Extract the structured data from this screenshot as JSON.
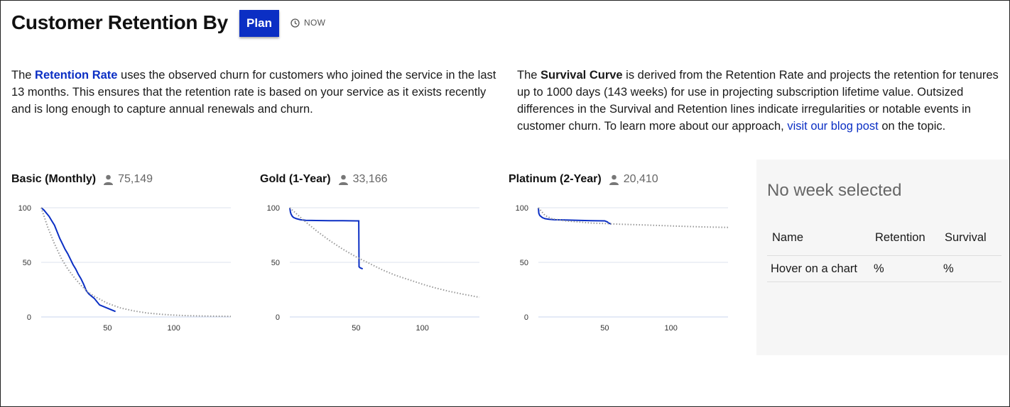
{
  "header": {
    "title": "Customer Retention By",
    "plan_button": "Plan",
    "now_label": "NOW"
  },
  "intro_left": {
    "prefix": "The ",
    "highlight": "Retention Rate",
    "body": " uses the observed churn for customers who joined the service in the last 13 months. This ensures that the retention rate is based on your service as it exists recently and is long enough to capture annual renewals and churn."
  },
  "intro_right": {
    "prefix": "The ",
    "bold": "Survival Curve",
    "body": " is derived from the Retention Rate and projects the retention for tenures up to 1000 days (143 weeks) for use in projecting subscription lifetime value. Outsized differences in the Survival and Retention lines indicate irregularities or notable events in customer churn. To learn more about our approach, ",
    "link": "visit our blog post",
    "suffix": " on the topic."
  },
  "colors": {
    "accent": "#0b2fc4",
    "survival": "#999999",
    "grid": "#dde3ec"
  },
  "charts": [
    {
      "name": "Basic (Monthly)",
      "count": "75,149"
    },
    {
      "name": "Gold (1-Year)",
      "count": "33,166"
    },
    {
      "name": "Platinum (2-Year)",
      "count": "20,410"
    }
  ],
  "chart_data": [
    {
      "type": "line",
      "title": "Basic (Monthly)",
      "xlim": [
        0,
        143
      ],
      "ylim": [
        0,
        100
      ],
      "x_ticks": [
        50,
        100
      ],
      "y_ticks": [
        0,
        50,
        100
      ],
      "series": [
        {
          "style": "solid",
          "x": [
            0,
            2,
            4,
            6,
            8,
            10,
            12,
            14,
            16,
            18,
            20,
            22,
            24,
            26,
            28,
            30,
            32,
            34,
            36,
            40,
            44,
            50,
            56
          ],
          "y": [
            100,
            98,
            95,
            92,
            88,
            84,
            78,
            72,
            67,
            62,
            58,
            53,
            48,
            44,
            39,
            35,
            30,
            24,
            21,
            17,
            11,
            8,
            5
          ]
        },
        {
          "style": "dotted",
          "x": [
            0,
            5,
            10,
            15,
            20,
            25,
            30,
            35,
            40,
            50,
            60,
            70,
            80,
            90,
            100,
            110,
            120,
            130,
            143
          ],
          "y": [
            100,
            82,
            67,
            54,
            44,
            36,
            29,
            23,
            19,
            12.5,
            8.2,
            5.5,
            3.6,
            2.5,
            1.7,
            1.2,
            0.9,
            0.7,
            0.5
          ]
        }
      ]
    },
    {
      "type": "line",
      "title": "Gold (1-Year)",
      "xlim": [
        0,
        143
      ],
      "ylim": [
        0,
        100
      ],
      "x_ticks": [
        50,
        100
      ],
      "y_ticks": [
        0,
        50,
        100
      ],
      "series": [
        {
          "style": "solid",
          "x": [
            0,
            0.5,
            1,
            2,
            3,
            5,
            8,
            12,
            20,
            30,
            40,
            50,
            52,
            52.2,
            53,
            55
          ],
          "y": [
            100,
            96,
            94,
            92,
            91,
            90,
            89,
            88.5,
            88.3,
            88.2,
            88.1,
            88,
            88,
            46,
            45,
            44
          ]
        },
        {
          "style": "dotted",
          "x": [
            0,
            10,
            20,
            30,
            40,
            50,
            60,
            70,
            80,
            90,
            100,
            110,
            120,
            130,
            143
          ],
          "y": [
            100,
            89,
            79,
            70,
            62,
            55,
            49,
            43,
            38,
            34,
            30,
            26.5,
            23.5,
            21,
            18
          ]
        }
      ]
    },
    {
      "type": "line",
      "title": "Platinum (2-Year)",
      "xlim": [
        0,
        143
      ],
      "ylim": [
        0,
        100
      ],
      "x_ticks": [
        50,
        100
      ],
      "y_ticks": [
        0,
        50,
        100
      ],
      "series": [
        {
          "style": "solid",
          "x": [
            0,
            0.3,
            1,
            2,
            3,
            5,
            8,
            12,
            20,
            30,
            40,
            50,
            52,
            53,
            55
          ],
          "y": [
            100,
            95,
            93,
            92,
            91,
            90,
            89.5,
            89,
            88.8,
            88.5,
            88.2,
            88,
            87,
            86,
            85
          ]
        },
        {
          "style": "dotted",
          "x": [
            0,
            5,
            10,
            20,
            30,
            40,
            50,
            60,
            70,
            80,
            90,
            100,
            110,
            120,
            130,
            143
          ],
          "y": [
            100,
            93,
            90,
            88,
            87,
            86,
            85.5,
            85,
            84.6,
            84.2,
            83.8,
            83.4,
            83,
            82.6,
            82.3,
            82
          ]
        }
      ]
    }
  ],
  "panel": {
    "heading": "No week selected",
    "columns": [
      "Name",
      "Retention",
      "Survival"
    ],
    "row": [
      "Hover on a chart",
      "%",
      "%"
    ]
  }
}
